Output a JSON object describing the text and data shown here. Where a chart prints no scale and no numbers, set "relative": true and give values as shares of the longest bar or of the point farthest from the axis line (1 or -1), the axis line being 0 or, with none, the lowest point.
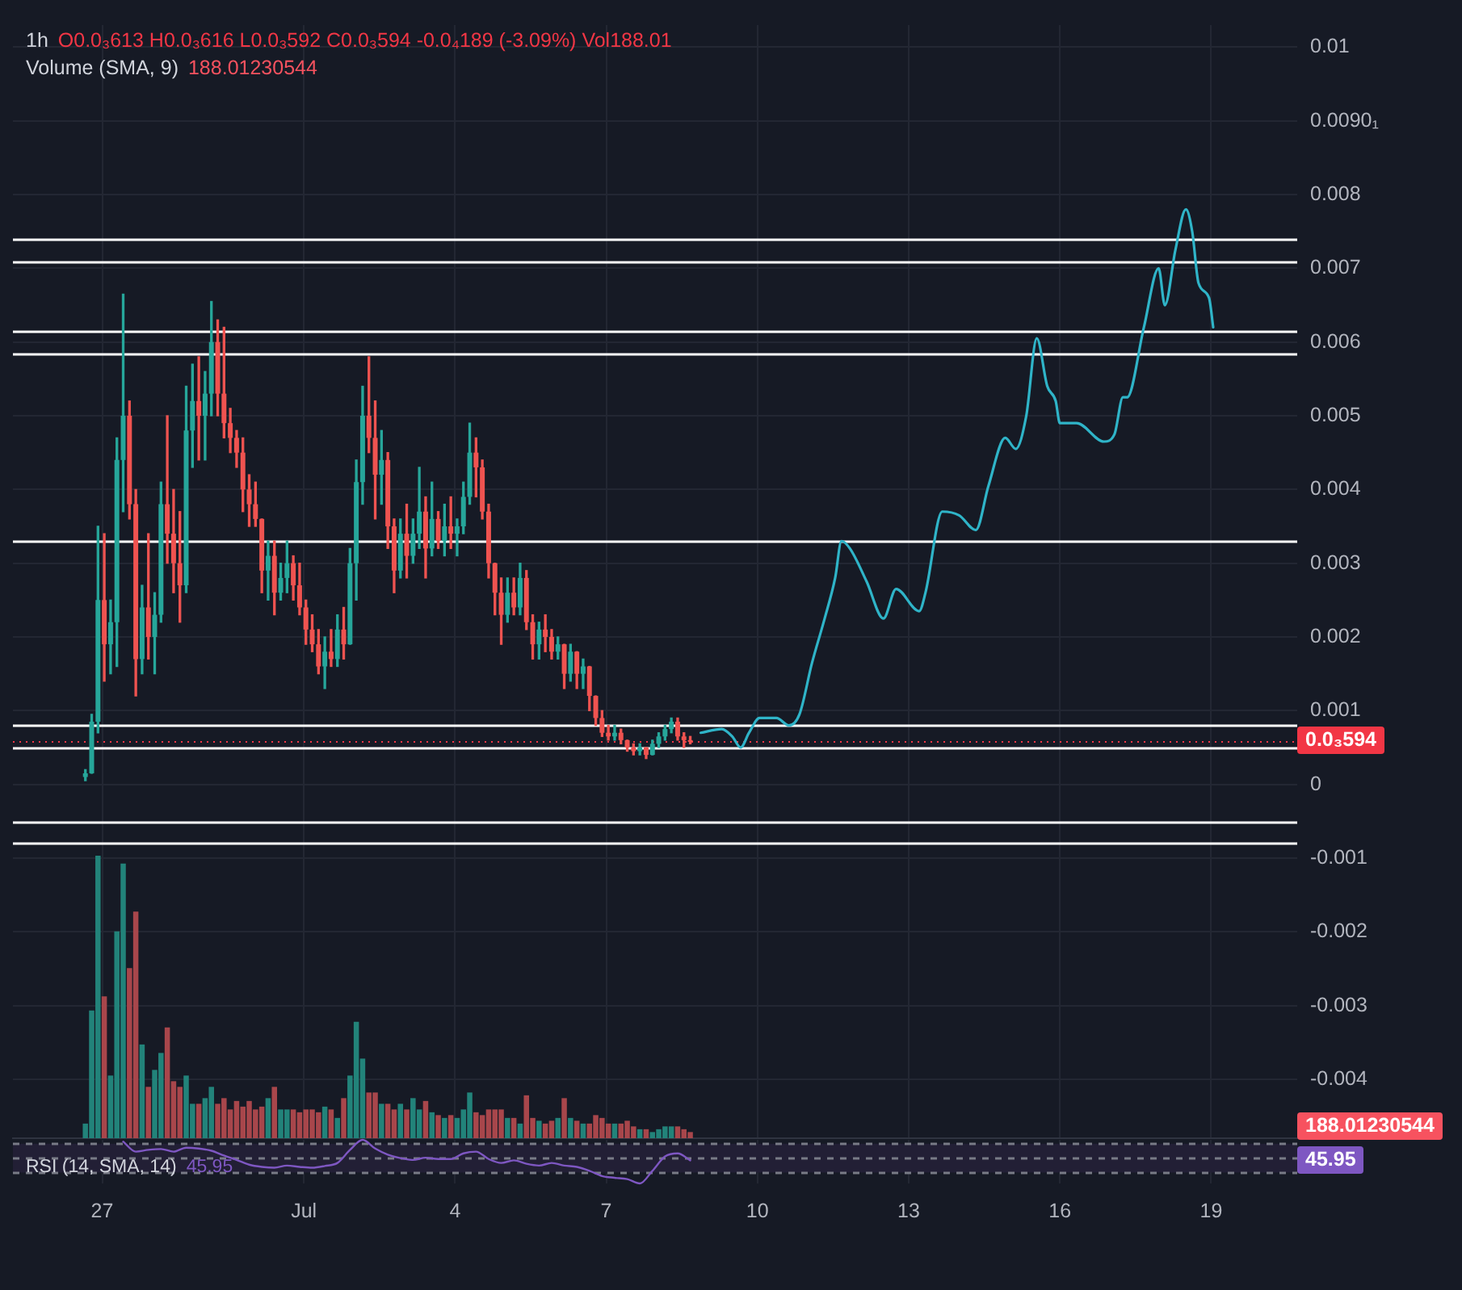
{
  "chart_data": [
    {
      "type": "candlestick",
      "title": "1h",
      "subtitle": "O0.0₃613 H0.0₃616 L0.0₃592 C0.0₃594 -0.0₄189 (-3.09%) Vol188.01",
      "xlim": [
        "--06-25T05:30",
        "--07-20T17:00"
      ],
      "xticks": [
        {
          "value": "--06-27",
          "label": null
        },
        {
          "value": "--07-01",
          "label": null
        },
        {
          "value": "--07-04",
          "label": null
        },
        {
          "value": "--07-07",
          "label": null
        },
        {
          "value": "--07-10",
          "label": null
        },
        {
          "value": "--07-13",
          "label": null
        },
        {
          "value": "--07-16",
          "label": null
        },
        {
          "value": "--07-19",
          "label": null
        }
      ],
      "ylim": [
        -0.0048,
        0.0103
      ],
      "yticks": [
        0.01,
        {
          "value": 0.009,
          "label": "0.0090₁"
        },
        0.008,
        0.007,
        0.006,
        0.005,
        0.004,
        0.003,
        0.002,
        0.001,
        0,
        -0.001,
        -0.002,
        -0.003,
        -0.004
      ],
      "tick_labels": "y",
      "grid": true,
      "marker": "none",
      "series": [
        {
          "type": "candlestick",
          "x": [
            "--06-26T16:00",
            "--06-26T19:00",
            "--06-26T22:00",
            "--06-27T01:00",
            "--06-27T04:00",
            "--06-27T07:00",
            "--06-27T10:00",
            "--06-27T13:00",
            "--06-27T16:00",
            "--06-27T19:00",
            "--06-27T22:00",
            "--06-28T01:00",
            "--06-28T04:00",
            "--06-28T07:00",
            "--06-28T10:00",
            "--06-28T13:00",
            "--06-28T16:00",
            "--06-28T19:00",
            "--06-28T22:00",
            "--06-29T01:00",
            "--06-29T04:00",
            "--06-29T07:00",
            "--06-29T10:00",
            "--06-29T13:00",
            "--06-29T16:00",
            "--06-29T19:00",
            "--06-29T22:00",
            "--06-30T01:00",
            "--06-30T04:00",
            "--06-30T07:00",
            "--06-30T10:00",
            "--06-30T13:00",
            "--06-30T16:00",
            "--06-30T19:00",
            "--06-30T22:00",
            "--07-01T01:00",
            "--07-01T04:00",
            "--07-01T07:00",
            "--07-01T10:00",
            "--07-01T13:00",
            "--07-01T16:00",
            "--07-01T19:00",
            "--07-01T22:00",
            "--07-02T01:00",
            "--07-02T04:00",
            "--07-02T07:00",
            "--07-02T10:00",
            "--07-02T13:00",
            "--07-02T16:00",
            "--07-02T19:00",
            "--07-02T22:00",
            "--07-03T01:00",
            "--07-03T04:00",
            "--07-03T07:00",
            "--07-03T10:00",
            "--07-03T13:00",
            "--07-03T16:00",
            "--07-03T19:00",
            "--07-03T22:00",
            "--07-04T01:00",
            "--07-04T04:00",
            "--07-04T07:00",
            "--07-04T10:00",
            "--07-04T13:00",
            "--07-04T16:00",
            "--07-04T19:00",
            "--07-04T22:00",
            "--07-05T01:00",
            "--07-05T04:00",
            "--07-05T07:00",
            "--07-05T10:00",
            "--07-05T13:00",
            "--07-05T16:00",
            "--07-05T19:00",
            "--07-05T22:00",
            "--07-06T01:00",
            "--07-06T04:00",
            "--07-06T07:00",
            "--07-06T10:00",
            "--07-06T13:00",
            "--07-06T16:00",
            "--07-06T19:00",
            "--07-06T22:00",
            "--07-07T01:00",
            "--07-07T04:00",
            "--07-07T07:00",
            "--07-07T10:00",
            "--07-07T13:00",
            "--07-07T16:00",
            "--07-07T19:00",
            "--07-07T22:00",
            "--07-08T01:00",
            "--07-08T04:00",
            "--07-08T07:00",
            "--07-08T10:00",
            "--07-08T13:00",
            "--07-08T16:00"
          ],
          "ohlc": [
            [
              0.0001,
              0.0002,
              5e-05,
              0.00015
            ],
            [
              0.00015,
              0.00095,
              0.00015,
              0.00085
            ],
            [
              0.00085,
              0.0035,
              0.0007,
              0.0025
            ],
            [
              0.0025,
              0.0034,
              0.0014,
              0.0019
            ],
            [
              0.0019,
              0.0025,
              0.0015,
              0.0022
            ],
            [
              0.0022,
              0.0047,
              0.0016,
              0.0044
            ],
            [
              0.0044,
              0.00665,
              0.0037,
              0.005
            ],
            [
              0.005,
              0.0052,
              0.0036,
              0.0038
            ],
            [
              0.0038,
              0.004,
              0.0012,
              0.0017
            ],
            [
              0.0017,
              0.0027,
              0.0015,
              0.0024
            ],
            [
              0.0024,
              0.0034,
              0.0017,
              0.002
            ],
            [
              0.002,
              0.0026,
              0.0015,
              0.0023
            ],
            [
              0.0023,
              0.0041,
              0.0022,
              0.0038
            ],
            [
              0.0038,
              0.005,
              0.003,
              0.0034
            ],
            [
              0.0034,
              0.004,
              0.0026,
              0.003
            ],
            [
              0.003,
              0.0037,
              0.0022,
              0.0027
            ],
            [
              0.0027,
              0.0054,
              0.0026,
              0.0048
            ],
            [
              0.0048,
              0.0057,
              0.0043,
              0.0052
            ],
            [
              0.0052,
              0.0058,
              0.0044,
              0.005
            ],
            [
              0.005,
              0.0056,
              0.0044,
              0.0053
            ],
            [
              0.0053,
              0.00655,
              0.005,
              0.006
            ],
            [
              0.006,
              0.0063,
              0.005,
              0.0053
            ],
            [
              0.0053,
              0.0062,
              0.0047,
              0.0049
            ],
            [
              0.0049,
              0.0051,
              0.0045,
              0.0047
            ],
            [
              0.0047,
              0.0048,
              0.0043,
              0.0045
            ],
            [
              0.0045,
              0.0047,
              0.0037,
              0.004
            ],
            [
              0.004,
              0.0042,
              0.0035,
              0.0038
            ],
            [
              0.0038,
              0.0041,
              0.0035,
              0.0036
            ],
            [
              0.0036,
              0.0036,
              0.0026,
              0.0029
            ],
            [
              0.0029,
              0.0033,
              0.0025,
              0.0031
            ],
            [
              0.0031,
              0.0033,
              0.0023,
              0.0026
            ],
            [
              0.0026,
              0.003,
              0.0025,
              0.0028
            ],
            [
              0.0028,
              0.0033,
              0.0026,
              0.003
            ],
            [
              0.003,
              0.0031,
              0.0025,
              0.0027
            ],
            [
              0.0027,
              0.003,
              0.0023,
              0.0024
            ],
            [
              0.0024,
              0.0025,
              0.0019,
              0.0021
            ],
            [
              0.0021,
              0.0023,
              0.0018,
              0.0019
            ],
            [
              0.0019,
              0.0021,
              0.0015,
              0.0016
            ],
            [
              0.0016,
              0.002,
              0.0013,
              0.0018
            ],
            [
              0.0018,
              0.0021,
              0.0016,
              0.0017
            ],
            [
              0.0017,
              0.0023,
              0.0016,
              0.0021
            ],
            [
              0.0021,
              0.0024,
              0.0017,
              0.0019
            ],
            [
              0.0019,
              0.0032,
              0.0019,
              0.003
            ],
            [
              0.003,
              0.0044,
              0.0025,
              0.0041
            ],
            [
              0.0041,
              0.0054,
              0.0038,
              0.005
            ],
            [
              0.005,
              0.0058,
              0.0045,
              0.0047
            ],
            [
              0.0047,
              0.0052,
              0.0036,
              0.0042
            ],
            [
              0.0042,
              0.0048,
              0.0038,
              0.0044
            ],
            [
              0.0044,
              0.0045,
              0.0032,
              0.0035
            ],
            [
              0.0035,
              0.0036,
              0.0026,
              0.0029
            ],
            [
              0.0029,
              0.0036,
              0.0028,
              0.0034
            ],
            [
              0.0034,
              0.0038,
              0.0028,
              0.0031
            ],
            [
              0.0031,
              0.0036,
              0.003,
              0.0034
            ],
            [
              0.0034,
              0.0043,
              0.0032,
              0.0037
            ],
            [
              0.0037,
              0.0039,
              0.0028,
              0.0032
            ],
            [
              0.0032,
              0.0041,
              0.0031,
              0.0036
            ],
            [
              0.0036,
              0.0037,
              0.0032,
              0.0033
            ],
            [
              0.0033,
              0.0038,
              0.0031,
              0.0035
            ],
            [
              0.0035,
              0.0039,
              0.0032,
              0.0034
            ],
            [
              0.0034,
              0.0036,
              0.0031,
              0.0035
            ],
            [
              0.0035,
              0.0041,
              0.0034,
              0.0039
            ],
            [
              0.0039,
              0.0049,
              0.0038,
              0.0045
            ],
            [
              0.0045,
              0.0047,
              0.0039,
              0.0043
            ],
            [
              0.0043,
              0.0044,
              0.0036,
              0.0037
            ],
            [
              0.0037,
              0.0038,
              0.0028,
              0.003
            ],
            [
              0.003,
              0.003,
              0.0023,
              0.0026
            ],
            [
              0.0026,
              0.0028,
              0.0019,
              0.0023
            ],
            [
              0.0023,
              0.0028,
              0.0022,
              0.0026
            ],
            [
              0.0026,
              0.0028,
              0.0023,
              0.0024
            ],
            [
              0.0024,
              0.003,
              0.0023,
              0.0028
            ],
            [
              0.0028,
              0.0029,
              0.0021,
              0.0022
            ],
            [
              0.0022,
              0.0023,
              0.0017,
              0.0019
            ],
            [
              0.0019,
              0.0022,
              0.0017,
              0.0021
            ],
            [
              0.0021,
              0.0023,
              0.0018,
              0.002
            ],
            [
              0.002,
              0.0021,
              0.0017,
              0.0018
            ],
            [
              0.0018,
              0.002,
              0.0017,
              0.0019
            ],
            [
              0.0019,
              0.0019,
              0.0013,
              0.0015
            ],
            [
              0.0015,
              0.0019,
              0.0014,
              0.0018
            ],
            [
              0.0018,
              0.0018,
              0.0013,
              0.0015
            ],
            [
              0.0015,
              0.0017,
              0.0013,
              0.0016
            ],
            [
              0.0016,
              0.0016,
              0.001,
              0.0012
            ],
            [
              0.0012,
              0.0012,
              0.0008,
              0.0009
            ],
            [
              0.0009,
              0.001,
              0.00065,
              0.0007
            ],
            [
              0.0007,
              0.0008,
              0.0006,
              0.00065
            ],
            [
              0.00065,
              0.0008,
              0.0006,
              0.0007
            ],
            [
              0.0007,
              0.00075,
              0.00055,
              0.0006
            ],
            [
              0.0006,
              0.0006,
              0.00045,
              0.0005
            ],
            [
              0.0005,
              0.00055,
              0.0004,
              0.00045
            ],
            [
              0.00045,
              0.00055,
              0.0004,
              0.0005
            ],
            [
              0.0005,
              0.0005,
              0.00035,
              0.0004
            ],
            [
              0.0004,
              0.0006,
              0.0004,
              0.00055
            ],
            [
              0.00055,
              0.0007,
              0.0005,
              0.00065
            ],
            [
              0.00065,
              0.0008,
              0.0006,
              0.00075
            ],
            [
              0.00075,
              0.0009,
              0.0007,
              0.00085
            ],
            [
              0.00085,
              0.0009,
              0.0006,
              0.00065
            ],
            [
              0.00065,
              0.0007,
              0.0005,
              0.0006
            ],
            [
              0.0006,
              0.00065,
              0.00055,
              0.000594
            ]
          ],
          "colors": [
            "#26a69a",
            "#26a69a",
            "#26a69a",
            "#ef5350",
            "#26a69a",
            "#26a69a",
            "#26a69a",
            "#ef5350",
            "#ef5350",
            "#26a69a",
            "#ef5350",
            "#26a69a",
            "#26a69a",
            "#ef5350",
            "#ef5350",
            "#ef5350",
            "#26a69a",
            "#26a69a",
            "#ef5350",
            "#26a69a",
            "#26a69a",
            "#ef5350",
            "#ef5350",
            "#ef5350",
            "#ef5350",
            "#ef5350",
            "#ef5350",
            "#ef5350",
            "#ef5350",
            "#26a69a",
            "#ef5350",
            "#26a69a",
            "#26a69a",
            "#ef5350",
            "#ef5350",
            "#ef5350",
            "#ef5350",
            "#ef5350",
            "#26a69a",
            "#ef5350",
            "#26a69a",
            "#ef5350",
            "#26a69a",
            "#26a69a",
            "#26a69a",
            "#ef5350",
            "#ef5350",
            "#26a69a",
            "#ef5350",
            "#ef5350",
            "#26a69a",
            "#ef5350",
            "#26a69a",
            "#26a69a",
            "#ef5350",
            "#26a69a",
            "#ef5350",
            "#26a69a",
            "#ef5350",
            "#26a69a",
            "#26a69a",
            "#26a69a",
            "#ef5350",
            "#ef5350",
            "#ef5350",
            "#ef5350",
            "#ef5350",
            "#26a69a",
            "#ef5350",
            "#26a69a",
            "#ef5350",
            "#ef5350",
            "#26a69a",
            "#ef5350",
            "#ef5350",
            "#26a69a",
            "#ef5350",
            "#26a69a",
            "#ef5350",
            "#26a69a",
            "#ef5350",
            "#ef5350",
            "#ef5350",
            "#ef5350",
            "#26a69a",
            "#ef5350",
            "#ef5350",
            "#ef5350",
            "#26a69a",
            "#ef5350",
            "#26a69a",
            "#26a69a",
            "#26a69a",
            "#26a69a",
            "#ef5350",
            "#ef5350",
            "#ef5350"
          ]
        },
        {
          "type": "line",
          "color": "#2fb4c8",
          "x": [
            "--07-08T21:00",
            "--07-09T07:00",
            "--07-09T12:00",
            "--07-09T16:00",
            "--07-09T20:00",
            "--07-10T01:00",
            "--07-10T09:00",
            "--07-10T15:00",
            "--07-10T20:00",
            "--07-11T02:00",
            "--07-11T08:00",
            "--07-11T13:00",
            "--07-11T16:00",
            "--07-11T20:00",
            "--07-12T04:00",
            "--07-12T12:00",
            "--07-12T18:00",
            "--07-13T05:00",
            "--07-13T08:00",
            "--07-13T16:00",
            "--07-14T00:00",
            "--07-14T08:00",
            "--07-14T14:00",
            "--07-14T22:00",
            "--07-15T03:00",
            "--07-15T08:00",
            "--07-15T13:00",
            "--07-15T18:00",
            "--07-15T22:00",
            "--07-16T00:00",
            "--07-16T08:00",
            "--07-16T21:00",
            "--07-17T02:00",
            "--07-17T06:00",
            "--07-17T08:00",
            "--07-17T16:00",
            "--07-17T23:00",
            "--07-18T02:00",
            "--07-18T07:00",
            "--07-18T12:00",
            "--07-18T15:00",
            "--07-18T18:00",
            "--07-18T23:00",
            "--07-19T01:00"
          ],
          "values": [
            0.0007,
            0.00075,
            0.00065,
            0.0005,
            0.0007,
            0.0009,
            0.0009,
            0.0008,
            0.00095,
            0.00165,
            0.00225,
            0.0028,
            0.0033,
            0.0032,
            0.00275,
            0.00225,
            0.00265,
            0.00235,
            0.0026,
            0.0037,
            0.00365,
            0.00345,
            0.00405,
            0.0047,
            0.00455,
            0.005,
            0.00605,
            0.0054,
            0.0052,
            0.0049,
            0.0049,
            0.00465,
            0.00475,
            0.00525,
            0.00525,
            0.0062,
            0.007,
            0.0065,
            0.00725,
            0.0078,
            0.0075,
            0.0068,
            0.0066,
            0.0062
          ]
        }
      ],
      "ref_lines": [
        {
          "axis": "y",
          "value": 0.0074,
          "color": "#ffffff"
        },
        {
          "axis": "y",
          "value": 0.0071,
          "color": "#ffffff"
        },
        {
          "axis": "y",
          "value": 0.00615,
          "color": "#ffffff"
        },
        {
          "axis": "y",
          "value": 0.00585,
          "color": "#ffffff"
        },
        {
          "axis": "y",
          "value": 0.0033,
          "color": "#ffffff"
        },
        {
          "axis": "y",
          "value": 0.0008,
          "color": "#ffffff"
        },
        {
          "axis": "y",
          "value": 0.0005,
          "color": "#ffffff"
        },
        {
          "axis": "y",
          "value": -0.0005,
          "color": "#ffffff"
        },
        {
          "axis": "y",
          "value": -0.0008,
          "color": "#ffffff"
        },
        {
          "axis": "y",
          "value": 0.000594,
          "label": "0.0₃594",
          "color": "#f23645",
          "line_style": "dotted"
        }
      ]
    },
    {
      "type": "bar",
      "title": "Volume (SMA, 9)",
      "annotations": [
        "188.01230544",
        "188.01230544"
      ],
      "relative": true,
      "tick_labels": false,
      "xlim": [
        "--06-25T05:30",
        "--07-20T17:00"
      ],
      "x": [
        "--06-26T16:00",
        "--06-26T19:00",
        "--06-26T22:00",
        "--06-27T01:00",
        "--06-27T04:00",
        "--06-27T07:00",
        "--06-27T10:00",
        "--06-27T13:00",
        "--06-27T16:00",
        "--06-27T19:00",
        "--06-27T22:00",
        "--06-28T01:00",
        "--06-28T04:00",
        "--06-28T07:00",
        "--06-28T10:00",
        "--06-28T13:00",
        "--06-28T16:00",
        "--06-28T19:00",
        "--06-28T22:00",
        "--06-29T01:00",
        "--06-29T04:00",
        "--06-29T07:00",
        "--06-29T10:00",
        "--06-29T13:00",
        "--06-29T16:00",
        "--06-29T19:00",
        "--06-29T22:00",
        "--06-30T01:00",
        "--06-30T04:00",
        "--06-30T07:00",
        "--06-30T10:00",
        "--06-30T13:00",
        "--06-30T16:00",
        "--06-30T19:00",
        "--06-30T22:00",
        "--07-01T01:00",
        "--07-01T04:00",
        "--07-01T07:00",
        "--07-01T10:00",
        "--07-01T13:00",
        "--07-01T16:00",
        "--07-01T19:00",
        "--07-01T22:00",
        "--07-02T01:00",
        "--07-02T04:00",
        "--07-02T07:00",
        "--07-02T10:00",
        "--07-02T13:00",
        "--07-02T16:00",
        "--07-02T19:00",
        "--07-02T22:00",
        "--07-03T01:00",
        "--07-03T04:00",
        "--07-03T07:00",
        "--07-03T10:00",
        "--07-03T13:00",
        "--07-03T16:00",
        "--07-03T19:00",
        "--07-03T22:00",
        "--07-04T01:00",
        "--07-04T04:00",
        "--07-04T07:00",
        "--07-04T10:00",
        "--07-04T13:00",
        "--07-04T16:00",
        "--07-04T19:00",
        "--07-04T22:00",
        "--07-05T01:00",
        "--07-05T04:00",
        "--07-05T07:00",
        "--07-05T10:00",
        "--07-05T13:00",
        "--07-05T16:00",
        "--07-05T19:00",
        "--07-05T22:00",
        "--07-06T01:00",
        "--07-06T04:00",
        "--07-06T07:00",
        "--07-06T10:00",
        "--07-06T13:00",
        "--07-06T16:00",
        "--07-06T19:00",
        "--07-06T22:00",
        "--07-07T01:00",
        "--07-07T04:00",
        "--07-07T07:00",
        "--07-07T10:00",
        "--07-07T13:00",
        "--07-07T16:00",
        "--07-07T19:00",
        "--07-07T22:00",
        "--07-08T01:00",
        "--07-08T04:00",
        "--07-08T07:00",
        "--07-08T10:00",
        "--07-08T13:00",
        "--07-08T16:00"
      ],
      "values": [
        0.05,
        0.45,
        1,
        0.5,
        0.22,
        0.73,
        0.97,
        0.6,
        0.8,
        0.33,
        0.18,
        0.24,
        0.3,
        0.39,
        0.2,
        0.18,
        0.22,
        0.12,
        0.12,
        0.14,
        0.18,
        0.12,
        0.14,
        0.1,
        0.13,
        0.11,
        0.13,
        0.1,
        0.11,
        0.14,
        0.18,
        0.1,
        0.1,
        0.1,
        0.09,
        0.1,
        0.1,
        0.09,
        0.11,
        0.1,
        0.07,
        0.14,
        0.22,
        0.41,
        0.28,
        0.16,
        0.16,
        0.12,
        0.12,
        0.1,
        0.12,
        0.1,
        0.14,
        0.1,
        0.13,
        0.09,
        0.08,
        0.07,
        0.08,
        0.07,
        0.1,
        0.16,
        0.09,
        0.08,
        0.1,
        0.1,
        0.1,
        0.07,
        0.07,
        0.05,
        0.15,
        0.07,
        0.06,
        0.05,
        0.06,
        0.07,
        0.14,
        0.07,
        0.06,
        0.05,
        0.05,
        0.08,
        0.07,
        0.05,
        0.05,
        0.05,
        0.06,
        0.04,
        0.03,
        0.03,
        0.02,
        0.03,
        0.04,
        0.04,
        0.04,
        0.03,
        0.02
      ],
      "colors": [
        "#22837a",
        "#22837a",
        "#22837a",
        "#a8464b",
        "#22837a",
        "#22837a",
        "#22837a",
        "#a8464b",
        "#a8464b",
        "#22837a",
        "#a8464b",
        "#22837a",
        "#22837a",
        "#a8464b",
        "#a8464b",
        "#a8464b",
        "#22837a",
        "#22837a",
        "#a8464b",
        "#22837a",
        "#22837a",
        "#a8464b",
        "#a8464b",
        "#a8464b",
        "#a8464b",
        "#a8464b",
        "#a8464b",
        "#a8464b",
        "#a8464b",
        "#22837a",
        "#a8464b",
        "#22837a",
        "#22837a",
        "#a8464b",
        "#a8464b",
        "#a8464b",
        "#a8464b",
        "#a8464b",
        "#22837a",
        "#a8464b",
        "#22837a",
        "#a8464b",
        "#22837a",
        "#22837a",
        "#22837a",
        "#a8464b",
        "#a8464b",
        "#22837a",
        "#a8464b",
        "#a8464b",
        "#22837a",
        "#a8464b",
        "#22837a",
        "#22837a",
        "#a8464b",
        "#22837a",
        "#a8464b",
        "#22837a",
        "#a8464b",
        "#22837a",
        "#22837a",
        "#22837a",
        "#a8464b",
        "#a8464b",
        "#a8464b",
        "#a8464b",
        "#a8464b",
        "#22837a",
        "#a8464b",
        "#22837a",
        "#a8464b",
        "#a8464b",
        "#22837a",
        "#a8464b",
        "#a8464b",
        "#22837a",
        "#a8464b",
        "#22837a",
        "#a8464b",
        "#22837a",
        "#a8464b",
        "#a8464b",
        "#a8464b",
        "#a8464b",
        "#22837a",
        "#a8464b",
        "#a8464b",
        "#a8464b",
        "#22837a",
        "#a8464b",
        "#22837a",
        "#22837a",
        "#22837a",
        "#22837a",
        "#a8464b",
        "#a8464b",
        "#a8464b"
      ]
    },
    {
      "type": "line",
      "title": "RSI (14, SMA, 14)",
      "annotations": [
        "45.95",
        "45.95"
      ],
      "relative": true,
      "tick_labels": "x",
      "grid": "x",
      "marker": "none",
      "color": "#7e57c2",
      "xlim": [
        "--06-25T05:30",
        "--07-20T17:00"
      ],
      "xticks": [
        {
          "value": "--06-27",
          "label": "27"
        },
        {
          "value": "--07-01",
          "label": "Jul"
        },
        {
          "value": "--07-04",
          "label": "4"
        },
        {
          "value": "--07-07",
          "label": "7"
        },
        {
          "value": "--07-10",
          "label": "10"
        },
        {
          "value": "--07-13",
          "label": "13"
        },
        {
          "value": "--07-16",
          "label": "16"
        },
        {
          "value": "--07-19",
          "label": "19"
        }
      ],
      "x": [
        "--06-27T10:00",
        "--06-27T16:00",
        "--06-27T22:00",
        "--06-28T04:00",
        "--06-28T10:00",
        "--06-28T16:00",
        "--06-28T22:00",
        "--06-29T04:00",
        "--06-29T10:00",
        "--06-29T16:00",
        "--06-29T22:00",
        "--06-30T04:00",
        "--06-30T10:00",
        "--06-30T16:00",
        "--06-30T22:00",
        "--07-01T04:00",
        "--07-01T10:00",
        "--07-01T16:00",
        "--07-01T22:00",
        "--07-02T04:00",
        "--07-02T10:00",
        "--07-02T16:00",
        "--07-02T22:00",
        "--07-03T04:00",
        "--07-03T10:00",
        "--07-03T16:00",
        "--07-03T22:00",
        "--07-04T04:00",
        "--07-04T10:00",
        "--07-04T16:00",
        "--07-04T22:00",
        "--07-05T04:00",
        "--07-05T10:00",
        "--07-05T16:00",
        "--07-05T22:00",
        "--07-06T04:00",
        "--07-06T10:00",
        "--07-06T16:00",
        "--07-06T22:00",
        "--07-07T04:00",
        "--07-07T10:00",
        "--07-07T16:00",
        "--07-07T22:00",
        "--07-08T04:00",
        "--07-08T10:00",
        "--07-08T16:00"
      ],
      "values": [
        0.96,
        0.73,
        0.77,
        0.79,
        0.73,
        0.82,
        0.8,
        0.75,
        0.64,
        0.54,
        0.43,
        0.38,
        0.36,
        0.41,
        0.38,
        0.36,
        0.4,
        0.47,
        0.77,
        1,
        0.8,
        0.66,
        0.58,
        0.54,
        0.59,
        0.56,
        0.56,
        0.69,
        0.73,
        0.56,
        0.47,
        0.53,
        0.45,
        0.41,
        0.47,
        0.41,
        0.38,
        0.29,
        0.17,
        0.13,
        0.1,
        0,
        0.29,
        0.62,
        0.69,
        0.53
      ],
      "ref_lines": [
        {
          "axis": "y",
          "value": 0.91,
          "color": "#787b86",
          "line_style": "dashed"
        },
        {
          "axis": "y",
          "value": 0.58,
          "color": "#787b86",
          "line_style": "dashed"
        },
        {
          "axis": "y",
          "value": 0.25,
          "color": "#787b86",
          "line_style": "dashed"
        }
      ],
      "bands": [
        {
          "axis": "y",
          "from": 0.25,
          "to": 0.91,
          "color": "#221f35"
        }
      ]
    }
  ]
}
